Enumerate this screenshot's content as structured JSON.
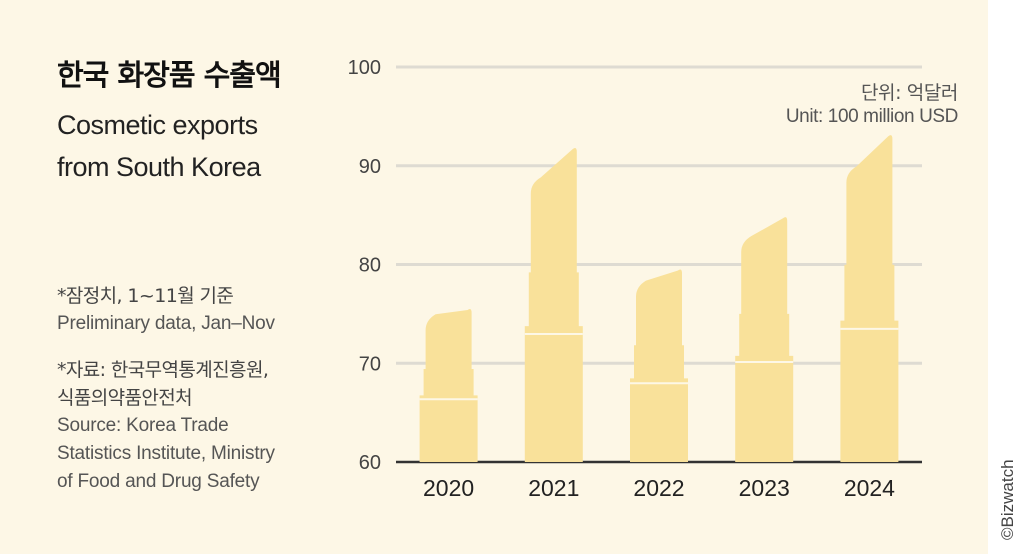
{
  "title_ko": "한국 화장품 수출액",
  "title_en_line1": "Cosmetic exports",
  "title_en_line2": "from South Korea",
  "note_preliminary_ko": "*잠정치, 1~11월 기준",
  "note_preliminary_en": "Preliminary data, Jan–Nov",
  "source_ko_line1": "*자료: 한국무역통계진흥원,",
  "source_ko_line2": "식품의약품안전처",
  "source_en_line1": "Source: Korea Trade",
  "source_en_line2": "Statistics Institute, Ministry",
  "source_en_line3": "of Food and Drug Safety",
  "unit_ko": "단위: 억달러",
  "unit_en": "Unit: 100 million USD",
  "credit": "©Bizwatch",
  "colors": {
    "background": "#fdf7e6",
    "bar": "#f9e19a",
    "grid": "#dedbd2",
    "axis": "#333333"
  },
  "chart_data": {
    "type": "bar",
    "mark_style": "lipstick-shaped bars",
    "categories": [
      "2020",
      "2021",
      "2022",
      "2023",
      "2024"
    ],
    "values": [
      75.7,
      92.0,
      79.7,
      85.0,
      93.3
    ],
    "ylim": [
      60,
      100
    ],
    "yticks": [
      60,
      70,
      80,
      90,
      100
    ],
    "grid": true
  }
}
